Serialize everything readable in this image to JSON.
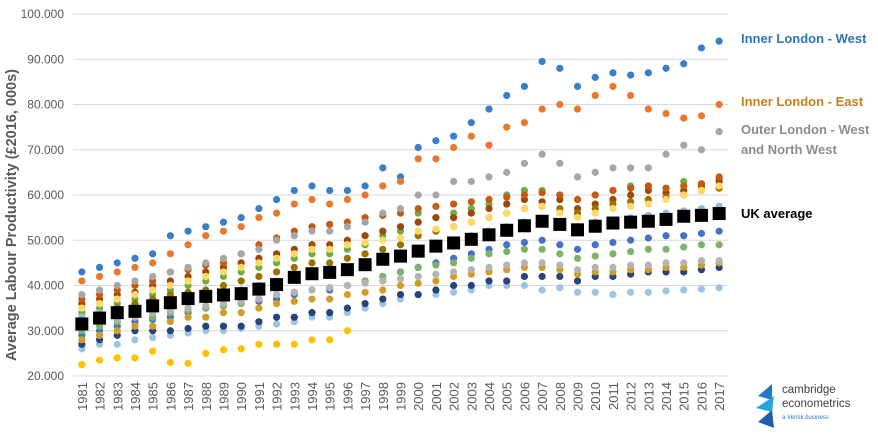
{
  "chart_data": {
    "type": "scatter",
    "ylabel": "Average Labour Productivity (£2016, 000s)",
    "xlabel": "",
    "ylim": [
      20,
      100
    ],
    "yticks": [
      "20.000",
      "30.000",
      "40.000",
      "50.000",
      "60.000",
      "70.000",
      "80.000",
      "90.000",
      "100.000"
    ],
    "categories": [
      "1981",
      "1982",
      "1983",
      "1984",
      "1985",
      "1986",
      "1987",
      "1988",
      "1989",
      "1990",
      "1991",
      "1992",
      "1993",
      "1994",
      "1995",
      "1996",
      "1997",
      "1998",
      "1999",
      "2000",
      "2001",
      "2002",
      "2003",
      "2004",
      "2005",
      "2006",
      "2007",
      "2008",
      "2009",
      "2010",
      "2011",
      "2012",
      "2013",
      "2014",
      "2015",
      "2016",
      "2017"
    ],
    "grid": true,
    "series": [
      {
        "name": "Inner London - West",
        "color": "#3a7dc9",
        "marker": "circle",
        "values": [
          43,
          44,
          45,
          46,
          47,
          51,
          52,
          53,
          54,
          55,
          57,
          59,
          61,
          62,
          61,
          61,
          62,
          66,
          64,
          70.5,
          72,
          73,
          76,
          79,
          82,
          84,
          89.5,
          88,
          84,
          86,
          87,
          86.5,
          87,
          88,
          89,
          92.5,
          94
        ]
      },
      {
        "name": "Inner London - East",
        "color": "#e8782c",
        "marker": "circle",
        "values": [
          41,
          42,
          43,
          44,
          45,
          47,
          49,
          51,
          52,
          53,
          55,
          56,
          58,
          59,
          58,
          59,
          60,
          62,
          63,
          68,
          68,
          70.5,
          73,
          71,
          75,
          76,
          79,
          80,
          79,
          82,
          84,
          82,
          79,
          78,
          77,
          77.5,
          80
        ]
      },
      {
        "name": "Outer London - West and North West",
        "color": "#a6a6a6",
        "marker": "circle",
        "values": [
          38,
          39,
          40,
          41,
          42,
          43,
          44,
          45,
          46,
          47,
          48,
          50,
          51,
          52,
          52,
          53,
          54,
          56,
          57,
          60,
          60,
          63,
          63,
          64,
          65,
          67,
          69,
          67,
          64,
          65,
          66,
          66,
          66,
          69,
          71,
          70,
          74
        ]
      },
      {
        "name": "UK average",
        "color": "#000000",
        "marker": "square",
        "values": [
          31.5,
          32.8,
          34,
          34.3,
          35.5,
          36.2,
          37.1,
          37.6,
          37.9,
          38.2,
          39.2,
          40.2,
          41.8,
          42.6,
          42.9,
          43.5,
          44.6,
          45.8,
          46.5,
          47.6,
          48.7,
          49.4,
          50.2,
          51.2,
          52.2,
          53.2,
          54.2,
          53.5,
          52.3,
          53.1,
          53.8,
          54,
          54.2,
          54.6,
          55.3,
          55.5,
          55.9
        ]
      },
      {
        "name": "",
        "color": "#ffc000",
        "marker": "circle",
        "values": [
          22.5,
          23.5,
          24,
          24,
          25.5,
          23,
          22.8,
          25,
          25.8,
          26,
          27,
          27,
          27,
          28,
          28,
          30,
          null,
          null,
          null,
          null,
          null,
          null,
          null,
          null,
          null,
          null,
          null,
          null,
          null,
          null,
          null,
          null,
          null,
          null,
          null,
          null,
          null
        ]
      },
      {
        "name": "",
        "color": "#9dc3e6",
        "marker": "circle",
        "values": [
          26,
          27,
          27,
          28,
          28.5,
          29,
          29.5,
          30,
          30,
          30.5,
          31,
          31.5,
          32,
          33,
          33,
          34,
          35,
          36,
          37,
          38,
          38,
          38.5,
          39,
          40,
          40,
          40,
          39,
          39.5,
          38.5,
          38.5,
          38,
          38.5,
          38.5,
          38.8,
          39,
          39.2,
          39.5
        ]
      },
      {
        "name": "",
        "color": "#264478",
        "marker": "circle",
        "values": [
          27,
          28,
          29,
          30,
          30,
          30,
          30.5,
          31,
          31,
          31,
          32,
          33,
          33,
          34,
          34,
          35,
          36,
          37,
          38,
          38,
          39,
          40,
          40,
          41,
          41,
          42,
          42,
          42,
          41,
          42,
          42,
          42.5,
          43,
          43,
          43,
          43.5,
          44
        ]
      },
      {
        "name": "",
        "color": "#70ad47",
        "marker": "circle",
        "values": [
          34,
          35,
          36,
          37,
          38,
          39,
          40,
          41,
          42,
          43,
          44,
          45,
          46,
          47,
          47,
          48,
          49,
          51,
          52,
          56,
          55,
          56,
          57,
          58,
          60,
          61,
          61,
          60,
          59,
          60,
          61,
          62,
          62,
          61.5,
          63,
          62,
          63.5
        ]
      },
      {
        "name": "",
        "color": "#9e480e",
        "marker": "circle",
        "values": [
          36,
          37,
          38,
          38.5,
          40,
          41,
          42,
          43,
          44,
          45,
          46,
          47,
          48,
          49,
          49,
          50,
          51,
          52,
          53,
          54,
          55,
          55,
          56,
          57,
          58,
          59,
          58.5,
          59,
          57,
          58,
          59,
          60,
          61,
          60.5,
          61,
          62,
          63
        ]
      },
      {
        "name": "",
        "color": "#997300",
        "marker": "circle",
        "values": [
          32,
          33,
          35,
          36,
          37,
          38,
          38.5,
          39,
          40,
          41,
          42,
          43,
          44,
          45,
          45,
          46,
          47,
          48,
          49,
          51,
          52,
          53,
          54,
          55,
          56,
          57,
          57.5,
          57,
          56,
          57,
          58,
          58.5,
          59,
          59.5,
          60,
          61,
          61.5
        ]
      },
      {
        "name": "",
        "color": "#4472c4",
        "marker": "circle",
        "values": [
          29,
          30,
          31,
          32,
          32.5,
          33,
          34,
          35,
          35.5,
          36,
          36.5,
          37,
          38,
          39,
          39,
          40,
          41,
          42,
          43,
          44,
          45,
          46,
          47,
          48,
          49,
          49.5,
          50,
          49,
          48,
          49,
          49.5,
          50,
          50.5,
          51,
          51,
          51.5,
          52
        ]
      },
      {
        "name": "",
        "color": "#7fb26a",
        "marker": "circle",
        "values": [
          30,
          31,
          32,
          33,
          33,
          34,
          34.5,
          35,
          35.5,
          36,
          37,
          38,
          38.5,
          39,
          39.5,
          40,
          41,
          42,
          43,
          44,
          44.5,
          45,
          46,
          47,
          47.5,
          48,
          48,
          47,
          46,
          46.5,
          47,
          47.5,
          48,
          48,
          48.5,
          49,
          49
        ]
      },
      {
        "name": "",
        "color": "#d19e25",
        "marker": "circle",
        "values": [
          28,
          29,
          30,
          31,
          31,
          32,
          33,
          33,
          34,
          34,
          35,
          36,
          36.5,
          37,
          37,
          38,
          38.5,
          39,
          40,
          40.5,
          41,
          42,
          42.5,
          43,
          43.5,
          44,
          44,
          43.5,
          42.5,
          43,
          43,
          43.5,
          43.5,
          44,
          44,
          44.5,
          45
        ]
      },
      {
        "name": "",
        "color": "#8fbcdf",
        "marker": "circle",
        "values": [
          33,
          34,
          34.5,
          35,
          36,
          36.5,
          37,
          37.5,
          38,
          39,
          40,
          41,
          42,
          43,
          43,
          44,
          45,
          46,
          47,
          48,
          49,
          50,
          51,
          52,
          53,
          54,
          54.5,
          54,
          53,
          54,
          54.5,
          55,
          55.5,
          56,
          56.5,
          57,
          57.5
        ]
      },
      {
        "name": "",
        "color": "#c55a11",
        "marker": "circle",
        "values": [
          37,
          38,
          39,
          40,
          41,
          43,
          43.5,
          44.5,
          45,
          47,
          49,
          50.5,
          52,
          53,
          53.5,
          54,
          55,
          55.5,
          56,
          57,
          57.5,
          58,
          58.5,
          59,
          59.5,
          60,
          60.5,
          60,
          59,
          60,
          61,
          61.5,
          62,
          61.5,
          62,
          62.5,
          64
        ]
      },
      {
        "name": "",
        "color": "#b4b4b4",
        "marker": "circle",
        "values": [
          31,
          32,
          32.5,
          33,
          34,
          34.5,
          35,
          35.5,
          36,
          36.5,
          37,
          38,
          38.5,
          39,
          39.5,
          40,
          40.5,
          41,
          41.5,
          42,
          42.5,
          43,
          43.5,
          44,
          44.5,
          45,
          45,
          44.5,
          43.5,
          44,
          44,
          44.5,
          44.5,
          45,
          45,
          45.5,
          45.5
        ]
      },
      {
        "name": "",
        "color": "#ffd966",
        "marker": "circle",
        "values": [
          35,
          36,
          37,
          38,
          39,
          40,
          41,
          42,
          43,
          44,
          45,
          46,
          47,
          48,
          48,
          49,
          49.5,
          50,
          50.5,
          52,
          52.5,
          53,
          54,
          55,
          56,
          57,
          57.5,
          56,
          55,
          56,
          57,
          57.5,
          58,
          59,
          60,
          61,
          62
        ]
      }
    ],
    "annotations": [
      {
        "text": "Inner London - West",
        "color": "#2e75b6"
      },
      {
        "text": "Inner London - East",
        "color": "#c5801a"
      },
      {
        "text": "Outer London - West and North West",
        "color": "#8c8c8c"
      },
      {
        "text": "UK average",
        "color": "#000000"
      }
    ]
  },
  "logo": {
    "line1": "cambridge",
    "line2": "econometrics",
    "tagline": "a Verisk business",
    "icon": "cambridge-econometrics-logo-icon"
  }
}
